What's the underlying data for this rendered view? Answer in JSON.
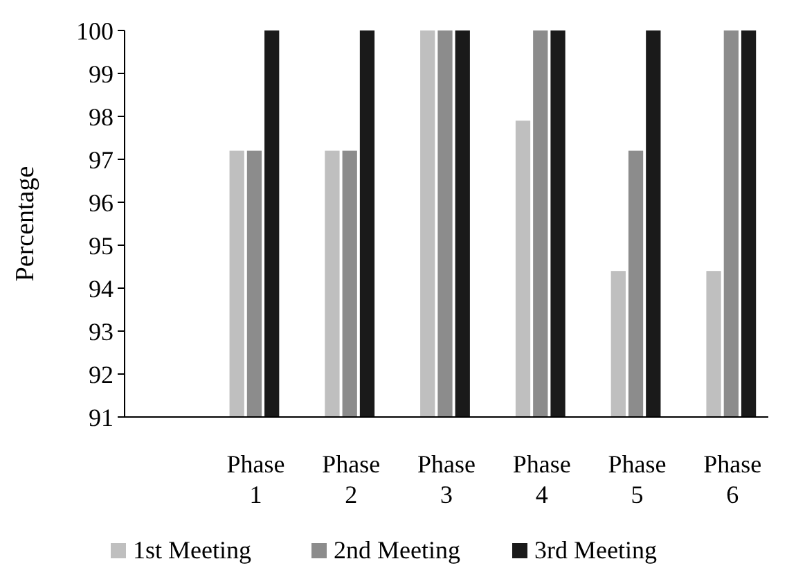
{
  "chart_data": {
    "type": "bar",
    "ylabel": "Percentage",
    "categories": [
      null,
      "Phase 1",
      "Phase 2",
      "Phase 3",
      "Phase 4",
      "Phase 5",
      "Phase 6"
    ],
    "series": [
      {
        "name": "1st Meeting",
        "color": "#bfbfbf",
        "values": [
          null,
          97.2,
          97.2,
          100,
          97.9,
          94.4,
          94.4
        ]
      },
      {
        "name": "2nd Meeting",
        "color": "#8c8c8c",
        "values": [
          null,
          97.2,
          97.2,
          100,
          100,
          97.2,
          100
        ]
      },
      {
        "name": "3rd Meeting",
        "color": "#1a1a1a",
        "values": [
          null,
          100,
          100,
          100,
          100,
          100,
          100
        ]
      }
    ],
    "ylim": [
      91,
      100
    ],
    "yticks": [
      91,
      92,
      93,
      94,
      95,
      96,
      97,
      98,
      99,
      100
    ],
    "grid": false,
    "legend": "bottom"
  }
}
